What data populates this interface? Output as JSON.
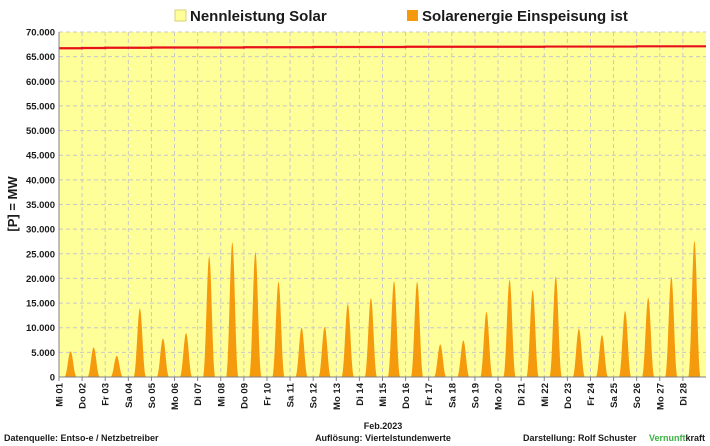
{
  "legend": {
    "capacity_label": "Nennleistung Solar",
    "feed_label": "Solarenergie Einspeisung ist"
  },
  "footer": {
    "source": "Datenquelle:  Entso-e  / Netzbetreiber",
    "resolution": "Auflösung: Viertelstundenwerte",
    "author_prefix": "Darstellung:  Rolf Schuster",
    "brand_green": "Vernunft",
    "brand_black": "kraft"
  },
  "colors": {
    "plot_bg": "#ffff99",
    "capacity_line": "#e8101a",
    "feed_fill": "#f59a0c",
    "grid": "#c8c8c8",
    "brand_green": "#3cb043"
  },
  "chart_data": {
    "type": "area",
    "title": "",
    "xlabel": "Feb.2023",
    "ylabel": "[P]  =  MW",
    "ylim": [
      0,
      70000
    ],
    "y_ticks": [
      "0",
      "5.000",
      "10.000",
      "15.000",
      "20.000",
      "25.000",
      "30.000",
      "35.000",
      "40.000",
      "45.000",
      "50.000",
      "55.000",
      "60.000",
      "65.000",
      "70.000"
    ],
    "categories": [
      "Mi 01",
      "Do 02",
      "Fr 03",
      "Sa 04",
      "So 05",
      "Mo 06",
      "Di 07",
      "Mi 08",
      "Do 09",
      "Fr 10",
      "Sa 11",
      "So 12",
      "Mo 13",
      "Di 14",
      "Mi 15",
      "Do 16",
      "Fr 17",
      "Sa 18",
      "So 19",
      "Mo 20",
      "Di 21",
      "Mi 22",
      "Do 23",
      "Fr 24",
      "Sa 25",
      "So 26",
      "Mo 27",
      "Di 28"
    ],
    "grid": true,
    "legend_position": "top",
    "series": [
      {
        "name": "Nennleistung Solar",
        "kind": "line",
        "values": [
          66700,
          66750,
          66800,
          66800,
          66850,
          66850,
          66850,
          66850,
          66900,
          66900,
          66900,
          66950,
          66950,
          66950,
          66950,
          67000,
          67000,
          67000,
          67000,
          67000,
          67000,
          67050,
          67050,
          67050,
          67050,
          67100,
          67100,
          67100
        ]
      },
      {
        "name": "Solarenergie Einspeisung ist",
        "kind": "daily-peak-area",
        "values": [
          5200,
          6000,
          4300,
          13900,
          7800,
          8900,
          24500,
          27300,
          25300,
          19300,
          10000,
          10200,
          14800,
          16000,
          19400,
          19300,
          6600,
          7400,
          13200,
          19700,
          17600,
          20400,
          9800,
          8500,
          13400,
          16100,
          20300,
          27600
        ]
      }
    ]
  }
}
